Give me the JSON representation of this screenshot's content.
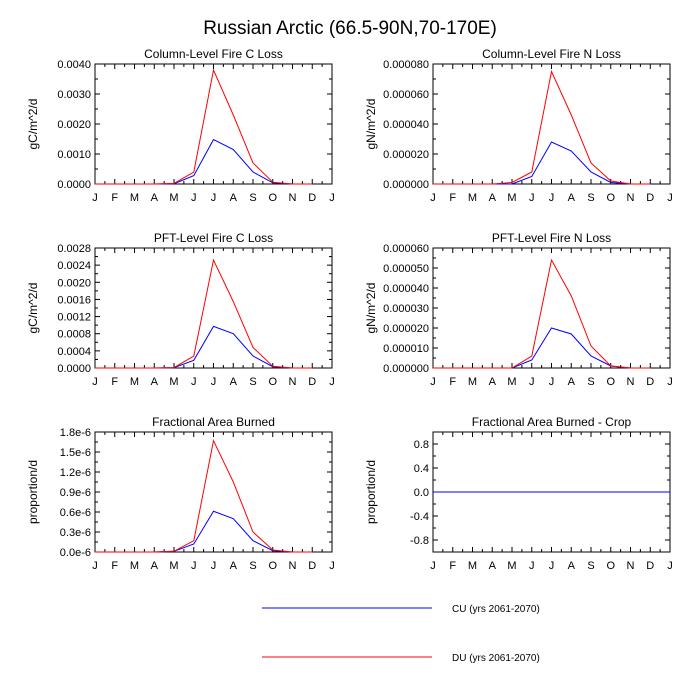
{
  "figure_title": "Russian Arctic (66.5-90N,70-170E)",
  "legend": [
    {
      "label": "CU (yrs 2061-2070)",
      "color": "#0000ff"
    },
    {
      "label": "DU (yrs 2061-2070)",
      "color": "#ff0000"
    }
  ],
  "months": [
    "J",
    "F",
    "M",
    "A",
    "M",
    "J",
    "J",
    "A",
    "S",
    "O",
    "N",
    "D",
    "J"
  ],
  "chart_data": [
    {
      "type": "line",
      "title": "Column-Level Fire C Loss",
      "ylabel": "gC/m^2/d",
      "ylim": [
        0,
        0.004
      ],
      "yticks": [
        0,
        0.001,
        0.002,
        0.003,
        0.004
      ],
      "yticklabels": [
        "0.0000",
        "0.0010",
        "0.0020",
        "0.0030",
        "0.0040"
      ],
      "x": [
        1,
        2,
        3,
        4,
        5,
        6,
        7,
        8,
        9,
        10,
        11,
        12
      ],
      "series": [
        {
          "name": "CU (yrs 2061-2070)",
          "color": "#0000ff",
          "values": [
            0,
            0,
            0,
            0,
            1e-05,
            0.00028,
            0.00148,
            0.00115,
            0.0004,
            4e-05,
            0,
            0
          ]
        },
        {
          "name": "DU (yrs 2061-2070)",
          "color": "#ff0000",
          "values": [
            0,
            0,
            0,
            0,
            2e-05,
            0.0004,
            0.0038,
            0.0023,
            0.0007,
            6e-05,
            0,
            0
          ]
        }
      ]
    },
    {
      "type": "line",
      "title": "Column-Level Fire N Loss",
      "ylabel": "gN/m^2/d",
      "ylim": [
        0,
        8e-05
      ],
      "yticks": [
        0,
        2e-05,
        4e-05,
        6e-05,
        8e-05
      ],
      "yticklabels": [
        "0.000000",
        "0.000020",
        "0.000040",
        "0.000060",
        "0.000080"
      ],
      "x": [
        1,
        2,
        3,
        4,
        5,
        6,
        7,
        8,
        9,
        10,
        11,
        12
      ],
      "series": [
        {
          "name": "CU (yrs 2061-2070)",
          "color": "#0000ff",
          "values": [
            0,
            0,
            0,
            0,
            0,
            5e-06,
            2.8e-05,
            2.2e-05,
            8e-06,
            1e-06,
            0,
            0
          ]
        },
        {
          "name": "DU (yrs 2061-2070)",
          "color": "#ff0000",
          "values": [
            0,
            0,
            0,
            0,
            1e-06,
            8e-06,
            7.5e-05,
            4.6e-05,
            1.4e-05,
            2e-06,
            0,
            0
          ]
        }
      ]
    },
    {
      "type": "line",
      "title": "PFT-Level Fire C Loss",
      "ylabel": "gC/m^2/d",
      "ylim": [
        0,
        0.0028
      ],
      "yticks": [
        0,
        0.0004,
        0.0008,
        0.0012,
        0.0016,
        0.002,
        0.0024,
        0.0028
      ],
      "yticklabels": [
        "0.0000",
        "0.0004",
        "0.0008",
        "0.0012",
        "0.0016",
        "0.0020",
        "0.0024",
        "0.0028"
      ],
      "x": [
        1,
        2,
        3,
        4,
        5,
        6,
        7,
        8,
        9,
        10,
        11,
        12
      ],
      "series": [
        {
          "name": "CU (yrs 2061-2070)",
          "color": "#0000ff",
          "values": [
            0,
            0,
            0,
            0,
            1e-05,
            0.00018,
            0.00097,
            0.0008,
            0.00028,
            3e-05,
            0,
            0
          ]
        },
        {
          "name": "DU (yrs 2061-2070)",
          "color": "#ff0000",
          "values": [
            0,
            0,
            0,
            0,
            1e-05,
            0.00028,
            0.00252,
            0.00155,
            0.00048,
            4e-05,
            0,
            0
          ]
        }
      ]
    },
    {
      "type": "line",
      "title": "PFT-Level Fire N Loss",
      "ylabel": "gN/m^2/d",
      "ylim": [
        0,
        6e-05
      ],
      "yticks": [
        0,
        1e-05,
        2e-05,
        3e-05,
        4e-05,
        5e-05,
        6e-05
      ],
      "yticklabels": [
        "0.000000",
        "0.000010",
        "0.000020",
        "0.000030",
        "0.000040",
        "0.000050",
        "0.000060"
      ],
      "x": [
        1,
        2,
        3,
        4,
        5,
        6,
        7,
        8,
        9,
        10,
        11,
        12
      ],
      "series": [
        {
          "name": "CU (yrs 2061-2070)",
          "color": "#0000ff",
          "values": [
            0,
            0,
            0,
            0,
            0,
            4e-06,
            2e-05,
            1.7e-05,
            6e-06,
            1e-06,
            0,
            0
          ]
        },
        {
          "name": "DU (yrs 2061-2070)",
          "color": "#ff0000",
          "values": [
            0,
            0,
            0,
            0,
            0,
            6e-06,
            5.4e-05,
            3.6e-05,
            1.1e-05,
            1e-06,
            0,
            0
          ]
        }
      ]
    },
    {
      "type": "line",
      "title": "Fractional Area Burned",
      "ylabel": "proportion/d",
      "ylim": [
        0,
        1.8e-06
      ],
      "yticks": [
        0,
        3e-07,
        6e-07,
        9e-07,
        1.2e-06,
        1.5e-06,
        1.8e-06
      ],
      "yticklabels": [
        "0.0e-6",
        "0.3e-6",
        "0.6e-6",
        "0.9e-6",
        "1.2e-6",
        "1.5e-6",
        "1.8e-6"
      ],
      "x": [
        1,
        2,
        3,
        4,
        5,
        6,
        7,
        8,
        9,
        10,
        11,
        12
      ],
      "series": [
        {
          "name": "CU (yrs 2061-2070)",
          "color": "#0000ff",
          "values": [
            0,
            0,
            0,
            0,
            1e-08,
            1.2e-07,
            6.1e-07,
            5e-07,
            1.7e-07,
            2e-08,
            0,
            0
          ]
        },
        {
          "name": "DU (yrs 2061-2070)",
          "color": "#ff0000",
          "values": [
            0,
            0,
            0,
            0,
            1e-08,
            1.7e-07,
            1.67e-06,
            1.05e-06,
            3e-07,
            3e-08,
            0,
            0
          ]
        }
      ]
    },
    {
      "type": "line",
      "title": "Fractional Area Burned - Crop",
      "ylabel": "proportion/d",
      "ylim": [
        -1,
        1
      ],
      "yticks": [
        -0.8,
        -0.4,
        0,
        0.4,
        0.8
      ],
      "yticklabels": [
        "-0.8",
        "-0.4",
        "0.0",
        "0.4",
        "0.8"
      ],
      "x": [
        1,
        2,
        3,
        4,
        5,
        6,
        7,
        8,
        9,
        10,
        11,
        12,
        13
      ],
      "series": [
        {
          "name": "CU (yrs 2061-2070)",
          "color": "#0000ff",
          "values": [
            0,
            0,
            0,
            0,
            0,
            0,
            0,
            0,
            0,
            0,
            0,
            0,
            0
          ]
        }
      ]
    }
  ]
}
